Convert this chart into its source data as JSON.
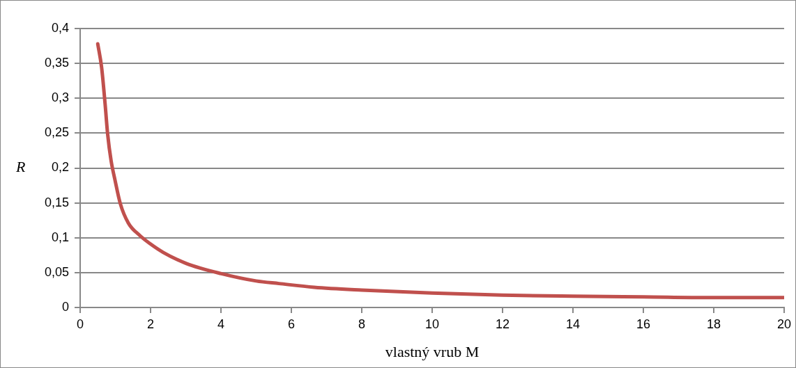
{
  "chart_data": {
    "type": "line",
    "xlabel": "vlastný vrub M",
    "ylabel": "R",
    "series": [
      {
        "color": "#c0504d",
        "x": [
          0.5,
          0.61,
          0.71,
          0.78,
          0.88,
          0.98,
          1.14,
          1.37,
          1.7,
          2.0,
          2.36,
          3.02,
          4.01,
          5.0,
          5.65,
          6.65,
          8,
          10,
          12,
          14,
          16,
          18,
          20
        ],
        "values": [
          0.378,
          0.344,
          0.291,
          0.249,
          0.21,
          0.185,
          0.149,
          0.121,
          0.103,
          0.091,
          0.079,
          0.063,
          0.0485,
          0.038,
          0.0343,
          0.029,
          0.025,
          0.0207,
          0.0177,
          0.0162,
          0.0152,
          0.0141,
          0.0141
        ]
      }
    ],
    "xlim": [
      0,
      20
    ],
    "xticks": [
      0,
      2,
      4,
      6,
      8,
      10,
      12,
      14,
      16,
      18,
      20
    ],
    "ylim": [
      0,
      0.4
    ],
    "yticks": [
      {
        "value": 0,
        "label": "0"
      },
      {
        "value": 0.05,
        "label": "0,05"
      },
      {
        "value": 0.1,
        "label": "0,1"
      },
      {
        "value": 0.15,
        "label": "0,15"
      },
      {
        "value": 0.2,
        "label": "0,2"
      },
      {
        "value": 0.25,
        "label": "0,25"
      },
      {
        "value": 0.3,
        "label": "0,3"
      },
      {
        "value": 0.35,
        "label": "0,35"
      },
      {
        "value": 0.4,
        "label": "0,4"
      }
    ],
    "grid": "y",
    "legend": false,
    "marker": "none",
    "line_style": "solid"
  }
}
